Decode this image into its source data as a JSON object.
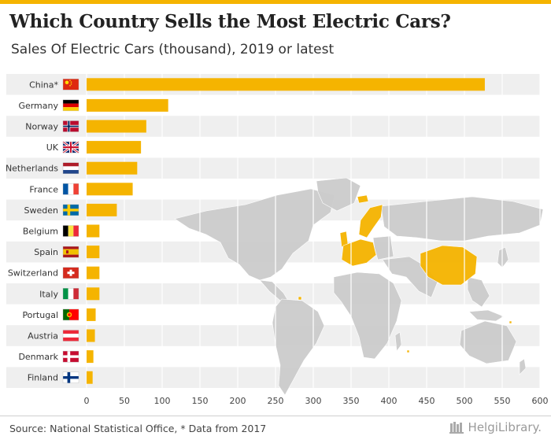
{
  "header": {
    "title": "Which Country Sells the Most Electric Cars?",
    "subtitle": "Sales Of Electric Cars (thousand), 2019 or latest"
  },
  "footer": {
    "source": "Source: National Statistical Office, * Data from 2017",
    "logo_text": "HelgiLibrary."
  },
  "colors": {
    "bar": "#f5b400",
    "map_land": "#cccccc",
    "map_highlight": "#f5b400",
    "row_band": "#efefef",
    "grid": "#ffffff"
  },
  "chart_data": {
    "type": "bar",
    "orientation": "horizontal",
    "categories": [
      "China*",
      "Germany",
      "Norway",
      "UK",
      "Netherlands",
      "France",
      "Sweden",
      "Belgium",
      "Spain",
      "Switzerland",
      "Italy",
      "Portugal",
      "Austria",
      "Denmark",
      "Finland"
    ],
    "flags": [
      "flag-china-icon",
      "flag-germany-icon",
      "flag-norway-icon",
      "flag-uk-icon",
      "flag-netherlands-icon",
      "flag-france-icon",
      "flag-sweden-icon",
      "flag-belgium-icon",
      "flag-spain-icon",
      "flag-switzerland-icon",
      "flag-italy-icon",
      "flag-portugal-icon",
      "flag-austria-icon",
      "flag-denmark-icon",
      "flag-finland-icon"
    ],
    "values": [
      527,
      108,
      79,
      72,
      67,
      61,
      40,
      17,
      17,
      17,
      17,
      12,
      11,
      9,
      8
    ],
    "xlim": [
      0,
      600
    ],
    "xticks": [
      0,
      50,
      100,
      150,
      200,
      250,
      300,
      350,
      400,
      450,
      500,
      550,
      600
    ],
    "grid": true,
    "background_map": "world map with listed countries highlighted"
  }
}
